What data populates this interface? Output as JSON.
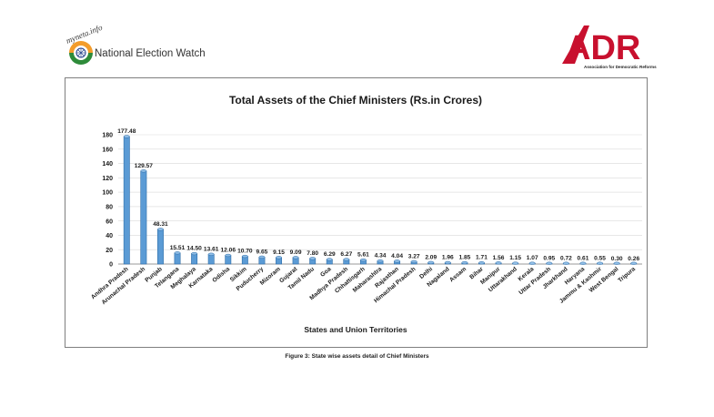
{
  "header": {
    "left_logo": {
      "site_text": "myneta.info",
      "title": "National Election Watch"
    },
    "right_logo": {
      "brand": "ADR",
      "subtitle": "Association for Democratic Reforms"
    }
  },
  "figure_caption": "Figure 3: State wise assets detail of Chief Ministers",
  "colors": {
    "bar_fill": "#5b9bd5",
    "bar_stroke": "#2e6da8",
    "logo_red": "#c8102e",
    "gridline": "#d9d9d9"
  },
  "chart_data": {
    "type": "bar",
    "title": "Total Assets of the Chief Ministers (Rs.in Crores)",
    "xlabel": "States and Union Territories",
    "ylabel": "",
    "ylim": [
      0,
      180
    ],
    "yticks": [
      0,
      20,
      40,
      60,
      80,
      100,
      120,
      140,
      160,
      180
    ],
    "grid": true,
    "categories": [
      "Andhra Pradesh",
      "Arunachal Pradesh",
      "Punjab",
      "Telangana",
      "Meghalaya",
      "Karnataka",
      "Odisha",
      "Sikkim",
      "Puducherry",
      "Mizoram",
      "Gujarat",
      "Tamil Nadu",
      "Goa",
      "Madhya Pradesh",
      "Chhattisgarh",
      "Maharashtra",
      "Rajasthan",
      "Himachal Pradesh",
      "Delhi",
      "Nagaland",
      "Assam",
      "Bihar",
      "Manipur",
      "Uttarakhand",
      "Kerala",
      "Uttar Pradesh",
      "Jharkhand",
      "Haryana",
      "Jammu & Kashmir",
      "West Bengal",
      "Tripura"
    ],
    "values": [
      177.48,
      129.57,
      48.31,
      15.51,
      14.5,
      13.61,
      12.06,
      10.7,
      9.65,
      9.15,
      9.09,
      7.8,
      6.29,
      6.27,
      5.61,
      4.34,
      4.04,
      3.27,
      2.09,
      1.96,
      1.85,
      1.71,
      1.56,
      1.15,
      1.07,
      0.95,
      0.72,
      0.61,
      0.55,
      0.3,
      0.26
    ],
    "value_labels": [
      "177.48",
      "129.57",
      "48.31",
      "15.51",
      "14.50",
      "13.61",
      "12.06",
      "10.70",
      "9.65",
      "9.15",
      "9.09",
      "7.80",
      "6.29",
      "6.27",
      "5.61",
      "4.34",
      "4.04",
      "3.27",
      "2.09",
      "1.96",
      "1.85",
      "1.71",
      "1.56",
      "1.15",
      "1.07",
      "0.95",
      "0.72",
      "0.61",
      "0.55",
      "0.30",
      "0.26"
    ]
  }
}
